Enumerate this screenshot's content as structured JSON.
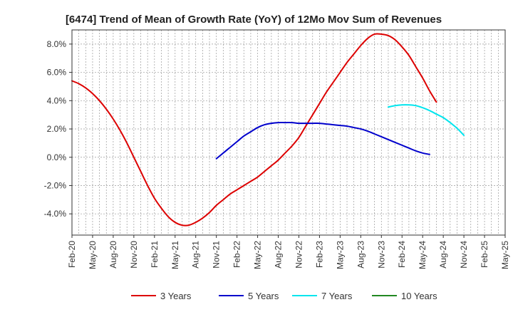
{
  "chart_data": {
    "type": "line",
    "title": "[6474]  Trend of Mean of Growth Rate (YoY) of 12Mo Mov Sum of Revenues",
    "xlabel": "",
    "ylabel": "",
    "ylim": [
      -5.5,
      9.0
    ],
    "yticks": [
      8.0,
      6.0,
      4.0,
      2.0,
      0.0,
      -2.0,
      -4.0
    ],
    "ytick_labels": [
      "8.0%",
      "6.0%",
      "4.0%",
      "2.0%",
      "0.0%",
      "-2.0%",
      "-4.0%"
    ],
    "x_start": "Feb-20",
    "x_months": 63,
    "xtick_labels": [
      "Feb-20",
      "May-20",
      "Aug-20",
      "Nov-20",
      "Feb-21",
      "May-21",
      "Aug-21",
      "Nov-21",
      "Feb-22",
      "May-22",
      "Aug-22",
      "Nov-22",
      "Feb-23",
      "May-23",
      "Aug-23",
      "Nov-23",
      "Feb-24",
      "May-24",
      "Aug-24",
      "Nov-24",
      "Feb-25",
      "May-25"
    ],
    "grid": true,
    "legend_position": "bottom",
    "series": [
      {
        "name": "3 Years",
        "color": "#dd0000",
        "start_index": 0,
        "values": [
          5.4,
          5.2,
          4.9,
          4.5,
          4.0,
          3.4,
          2.7,
          1.9,
          1.0,
          0.0,
          -1.0,
          -2.0,
          -2.9,
          -3.6,
          -4.2,
          -4.6,
          -4.8,
          -4.8,
          -4.6,
          -4.3,
          -3.9,
          -3.4,
          -3.0,
          -2.6,
          -2.3,
          -2.0,
          -1.7,
          -1.4,
          -1.0,
          -0.6,
          -0.2,
          0.3,
          0.8,
          1.4,
          2.2,
          3.0,
          3.8,
          4.6,
          5.3,
          6.0,
          6.7,
          7.3,
          7.9,
          8.4,
          8.7,
          8.7,
          8.6,
          8.3,
          7.8,
          7.2,
          6.4,
          5.6,
          4.7,
          3.9
        ]
      },
      {
        "name": "5 Years",
        "color": "#0000cc",
        "start_index": 21,
        "values": [
          -0.1,
          0.3,
          0.7,
          1.1,
          1.5,
          1.8,
          2.1,
          2.3,
          2.4,
          2.45,
          2.45,
          2.45,
          2.4,
          2.4,
          2.4,
          2.4,
          2.35,
          2.3,
          2.25,
          2.2,
          2.1,
          2.0,
          1.85,
          1.65,
          1.45,
          1.25,
          1.05,
          0.85,
          0.65,
          0.45,
          0.3,
          0.2
        ]
      },
      {
        "name": "7 Years",
        "color": "#00e5ee",
        "start_index": 46,
        "values": [
          3.55,
          3.65,
          3.7,
          3.7,
          3.65,
          3.5,
          3.3,
          3.05,
          2.8,
          2.45,
          2.05,
          1.55
        ]
      },
      {
        "name": "10 Years",
        "color": "#228822",
        "start_index": 0,
        "values": []
      }
    ]
  }
}
